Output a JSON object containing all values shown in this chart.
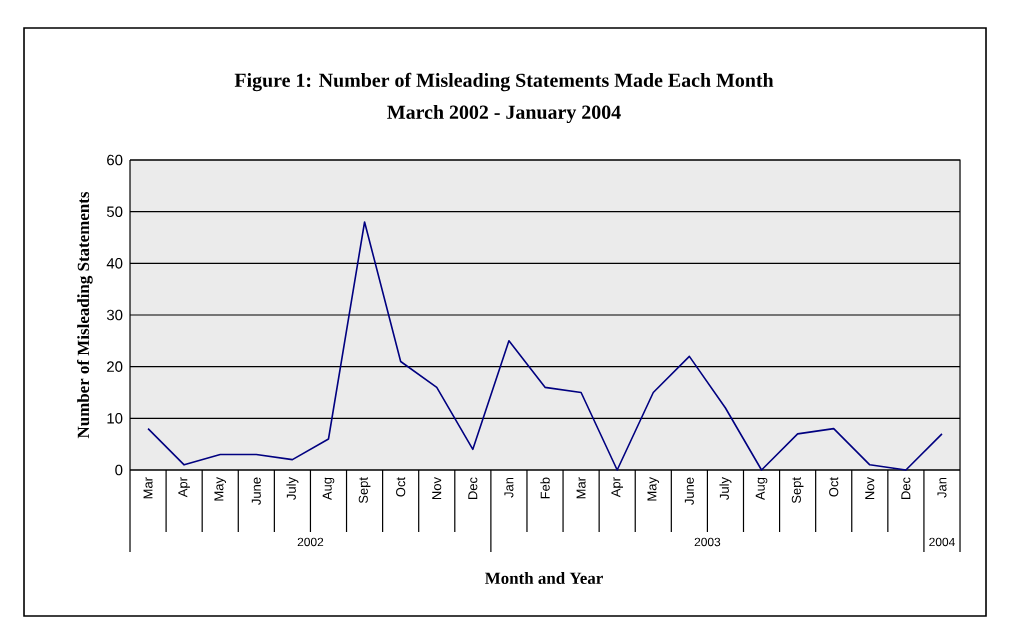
{
  "chart_data": {
    "type": "line",
    "title": "Figure 1:  Number of Misleading Statements Made Each Month",
    "subtitle": "March 2002 - January 2004",
    "xlabel": "Month and Year",
    "ylabel": "Number of Misleading Statements",
    "categories": [
      "Mar",
      "Apr",
      "May",
      "June",
      "July",
      "Aug",
      "Sept",
      "Oct",
      "Nov",
      "Dec",
      "Jan",
      "Feb",
      "Mar",
      "Apr",
      "May",
      "June",
      "July",
      "Aug",
      "Sept",
      "Oct",
      "Nov",
      "Dec",
      "Jan"
    ],
    "series": [
      {
        "color": "#000080",
        "values": [
          8,
          1,
          3,
          3,
          2,
          6,
          48,
          21,
          16,
          4,
          25,
          16,
          15,
          0,
          15,
          22,
          12,
          0,
          7,
          8,
          1,
          0,
          7
        ]
      }
    ],
    "annotations": [
      "2002",
      "2003",
      "2004"
    ],
    "ylim": [
      0,
      60
    ],
    "yticks": [
      0,
      10,
      20,
      30,
      40,
      50,
      60
    ],
    "grid": "y",
    "legend": false,
    "marker": "none",
    "line_style": "solid"
  }
}
